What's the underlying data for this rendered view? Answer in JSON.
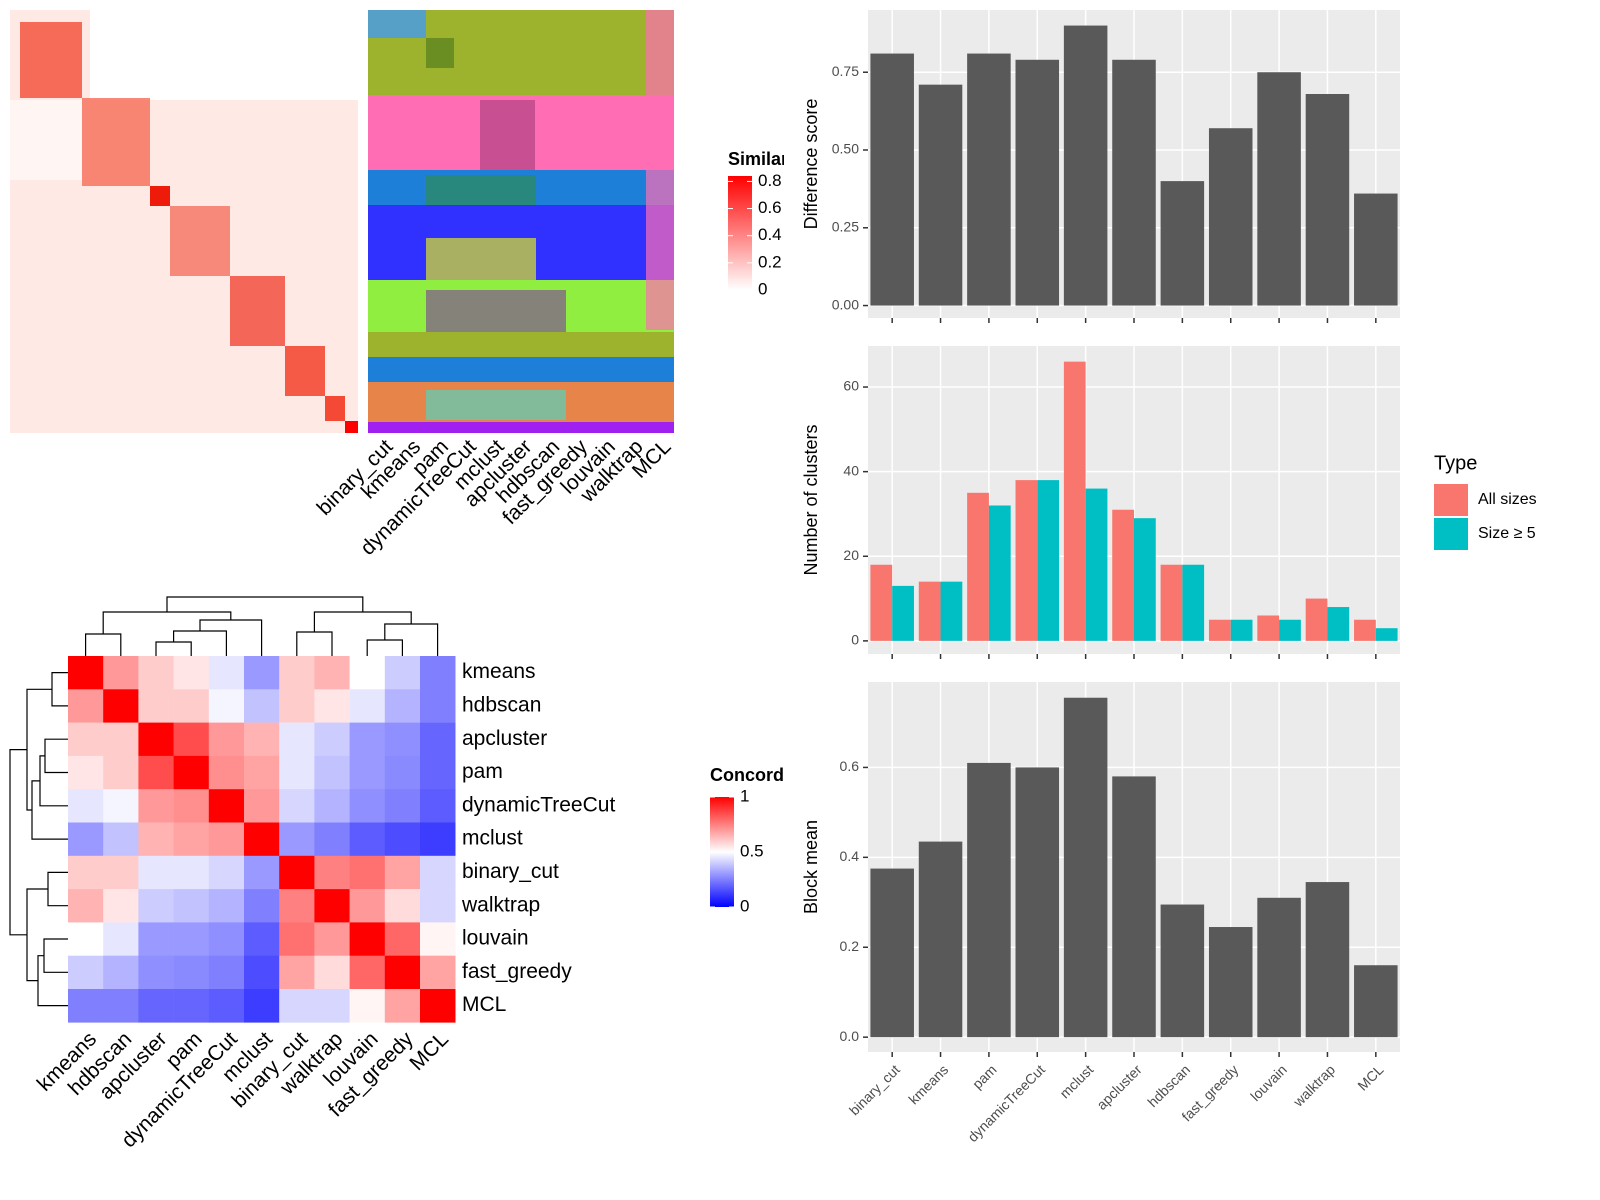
{
  "chart_data": [
    {
      "type": "heatmap",
      "legend_title": "Similarity",
      "zlim": [
        0,
        0.84
      ],
      "zticks": [
        0,
        0.2,
        0.4,
        0.6,
        0.8
      ],
      "colors": [
        "#FFFFFF",
        "#FF0000"
      ]
    },
    {
      "type": "cluster_map",
      "categories": [
        "binary_cut",
        "kmeans",
        "pam",
        "dynamicTreeCut",
        "mclust",
        "apcluster",
        "hdbscan",
        "fast_greedy",
        "louvain",
        "walktrap",
        "MCL"
      ]
    },
    {
      "type": "heatmap",
      "categories": [
        "kmeans",
        "hdbscan",
        "apcluster",
        "pam",
        "dynamicTreeCut",
        "mclust",
        "binary_cut",
        "walktrap",
        "louvain",
        "fast_greedy",
        "MCL"
      ],
      "matrix": [
        [
          1,
          0.7,
          0.6,
          0.55,
          0.45,
          0.3,
          0.6,
          0.65,
          0.5,
          0.4,
          0.25
        ],
        [
          0.7,
          1,
          0.6,
          0.6,
          0.48,
          0.38,
          0.6,
          0.55,
          0.45,
          0.35,
          0.25
        ],
        [
          0.6,
          0.6,
          1,
          0.85,
          0.7,
          0.65,
          0.45,
          0.4,
          0.3,
          0.28,
          0.2
        ],
        [
          0.55,
          0.6,
          0.85,
          1,
          0.72,
          0.68,
          0.45,
          0.38,
          0.3,
          0.27,
          0.2
        ],
        [
          0.45,
          0.48,
          0.7,
          0.72,
          1,
          0.7,
          0.42,
          0.35,
          0.28,
          0.25,
          0.18
        ],
        [
          0.3,
          0.38,
          0.65,
          0.68,
          0.7,
          1,
          0.3,
          0.25,
          0.18,
          0.15,
          0.12
        ],
        [
          0.6,
          0.6,
          0.45,
          0.45,
          0.42,
          0.3,
          1,
          0.75,
          0.78,
          0.68,
          0.42
        ],
        [
          0.65,
          0.55,
          0.4,
          0.38,
          0.35,
          0.25,
          0.75,
          1,
          0.7,
          0.57,
          0.42
        ],
        [
          0.5,
          0.45,
          0.3,
          0.3,
          0.28,
          0.18,
          0.78,
          0.7,
          1,
          0.8,
          0.52
        ],
        [
          0.4,
          0.35,
          0.28,
          0.27,
          0.25,
          0.15,
          0.68,
          0.57,
          0.8,
          1,
          0.68
        ],
        [
          0.25,
          0.25,
          0.2,
          0.2,
          0.18,
          0.12,
          0.42,
          0.42,
          0.52,
          0.68,
          1
        ]
      ],
      "legend_title": "Concordance",
      "zlim": [
        0,
        1
      ],
      "zticks": [
        0,
        0.5,
        1
      ],
      "colors": [
        "#0000FF",
        "#FFFFFF",
        "#FF0000"
      ]
    },
    {
      "type": "bar",
      "y_label": "Difference score",
      "values": [
        0.81,
        0.71,
        0.81,
        0.79,
        0.9,
        0.79,
        0.4,
        0.57,
        0.75,
        0.68,
        0.36
      ],
      "color": "#595959",
      "ylim": [
        -0.04,
        0.95
      ],
      "yticks": [
        {
          "value": 0,
          "label": "0.00"
        },
        {
          "value": 0.25,
          "label": "0.25"
        },
        {
          "value": 0.5,
          "label": "0.50"
        },
        {
          "value": 0.75,
          "label": "0.75"
        }
      ],
      "grid": true
    },
    {
      "type": "grouped_bar",
      "y_label": "Number of clusters",
      "legend_title": "Type",
      "series": [
        {
          "name": "All sizes",
          "color": "#F8766D",
          "values": [
            18,
            14,
            35,
            38,
            66,
            31,
            18,
            5,
            6,
            10,
            5
          ]
        },
        {
          "name": "Size ≥ 5",
          "color": "#00BFC4",
          "values": [
            13,
            14,
            32,
            38,
            36,
            29,
            18,
            5,
            5,
            8,
            3
          ]
        }
      ],
      "ylim": [
        -3.1,
        69.7
      ],
      "yticks": [
        0,
        20,
        40,
        60
      ],
      "grid": true
    },
    {
      "type": "bar",
      "y_label": "Block mean",
      "categories": [
        "binary_cut",
        "kmeans",
        "pam",
        "dynamicTreeCut",
        "mclust",
        "apcluster",
        "hdbscan",
        "fast_greedy",
        "louvain",
        "walktrap",
        "MCL"
      ],
      "values": [
        0.375,
        0.435,
        0.61,
        0.6,
        0.755,
        0.58,
        0.295,
        0.245,
        0.31,
        0.345,
        0.16
      ],
      "color": "#595959",
      "ylim": [
        -0.033,
        0.79
      ],
      "yticks": [
        {
          "value": 0,
          "label": "0.0"
        },
        {
          "value": 0.2,
          "label": "0.2"
        },
        {
          "value": 0.4,
          "label": "0.4"
        },
        {
          "value": 0.6,
          "label": "0.6"
        }
      ],
      "grid": true
    }
  ]
}
